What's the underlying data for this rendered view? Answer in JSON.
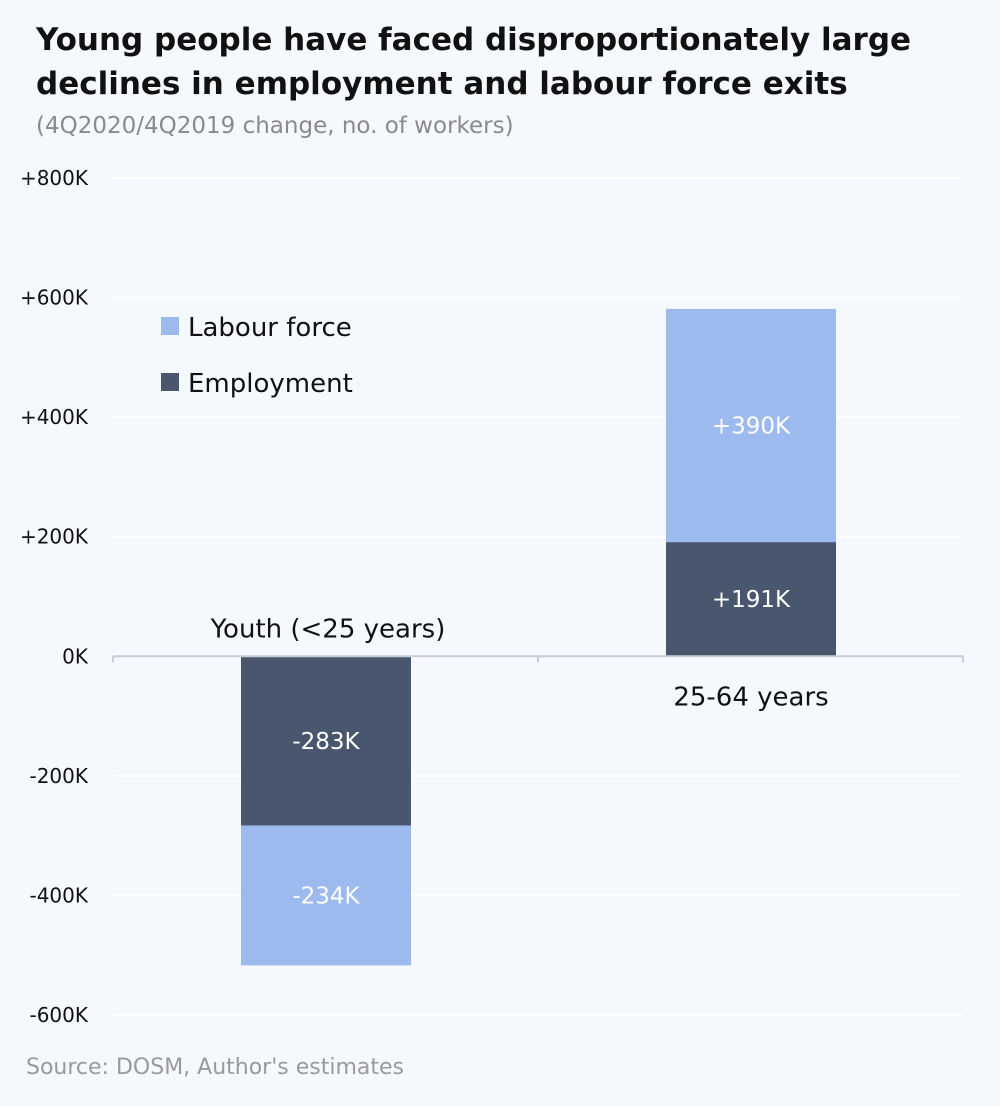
{
  "title": "Young people have faced disproportionately large declines in employment and labour force exits",
  "subtitle": "(4Q2020/4Q2019 change, no. of workers)",
  "source": "Source: DOSM, Author's estimates",
  "colors": {
    "labour_force": "#9dbaee",
    "employment": "#48566e",
    "gridline": "#ffffff",
    "axis": "#c8cdd4",
    "background": "#f5f8fd"
  },
  "chart_data": {
    "type": "bar",
    "stacked": true,
    "categories": [
      "Youth (<25 years)",
      "25-64 years"
    ],
    "series": [
      {
        "name": "Employment",
        "values": [
          -283,
          191
        ],
        "labels": [
          "-283K",
          "+191K"
        ],
        "color": "#48566e"
      },
      {
        "name": "Labour force",
        "values": [
          -234,
          390
        ],
        "labels": [
          "-234K",
          "+390K"
        ],
        "color": "#9dbaee"
      }
    ],
    "units": "thousands of workers",
    "ylim": [
      -600,
      800
    ],
    "yticks": [
      800,
      600,
      400,
      200,
      0,
      -200,
      -400,
      -600
    ],
    "ytick_labels": [
      "+800K",
      "+600K",
      "+400K",
      "+200K",
      "0K",
      "-200K",
      "-400K",
      "-600K"
    ],
    "legend": {
      "position": "top-left",
      "entries": [
        {
          "name": "Labour force",
          "color": "#9dbaee"
        },
        {
          "name": "Employment",
          "color": "#48566e"
        }
      ]
    },
    "grid": true
  }
}
